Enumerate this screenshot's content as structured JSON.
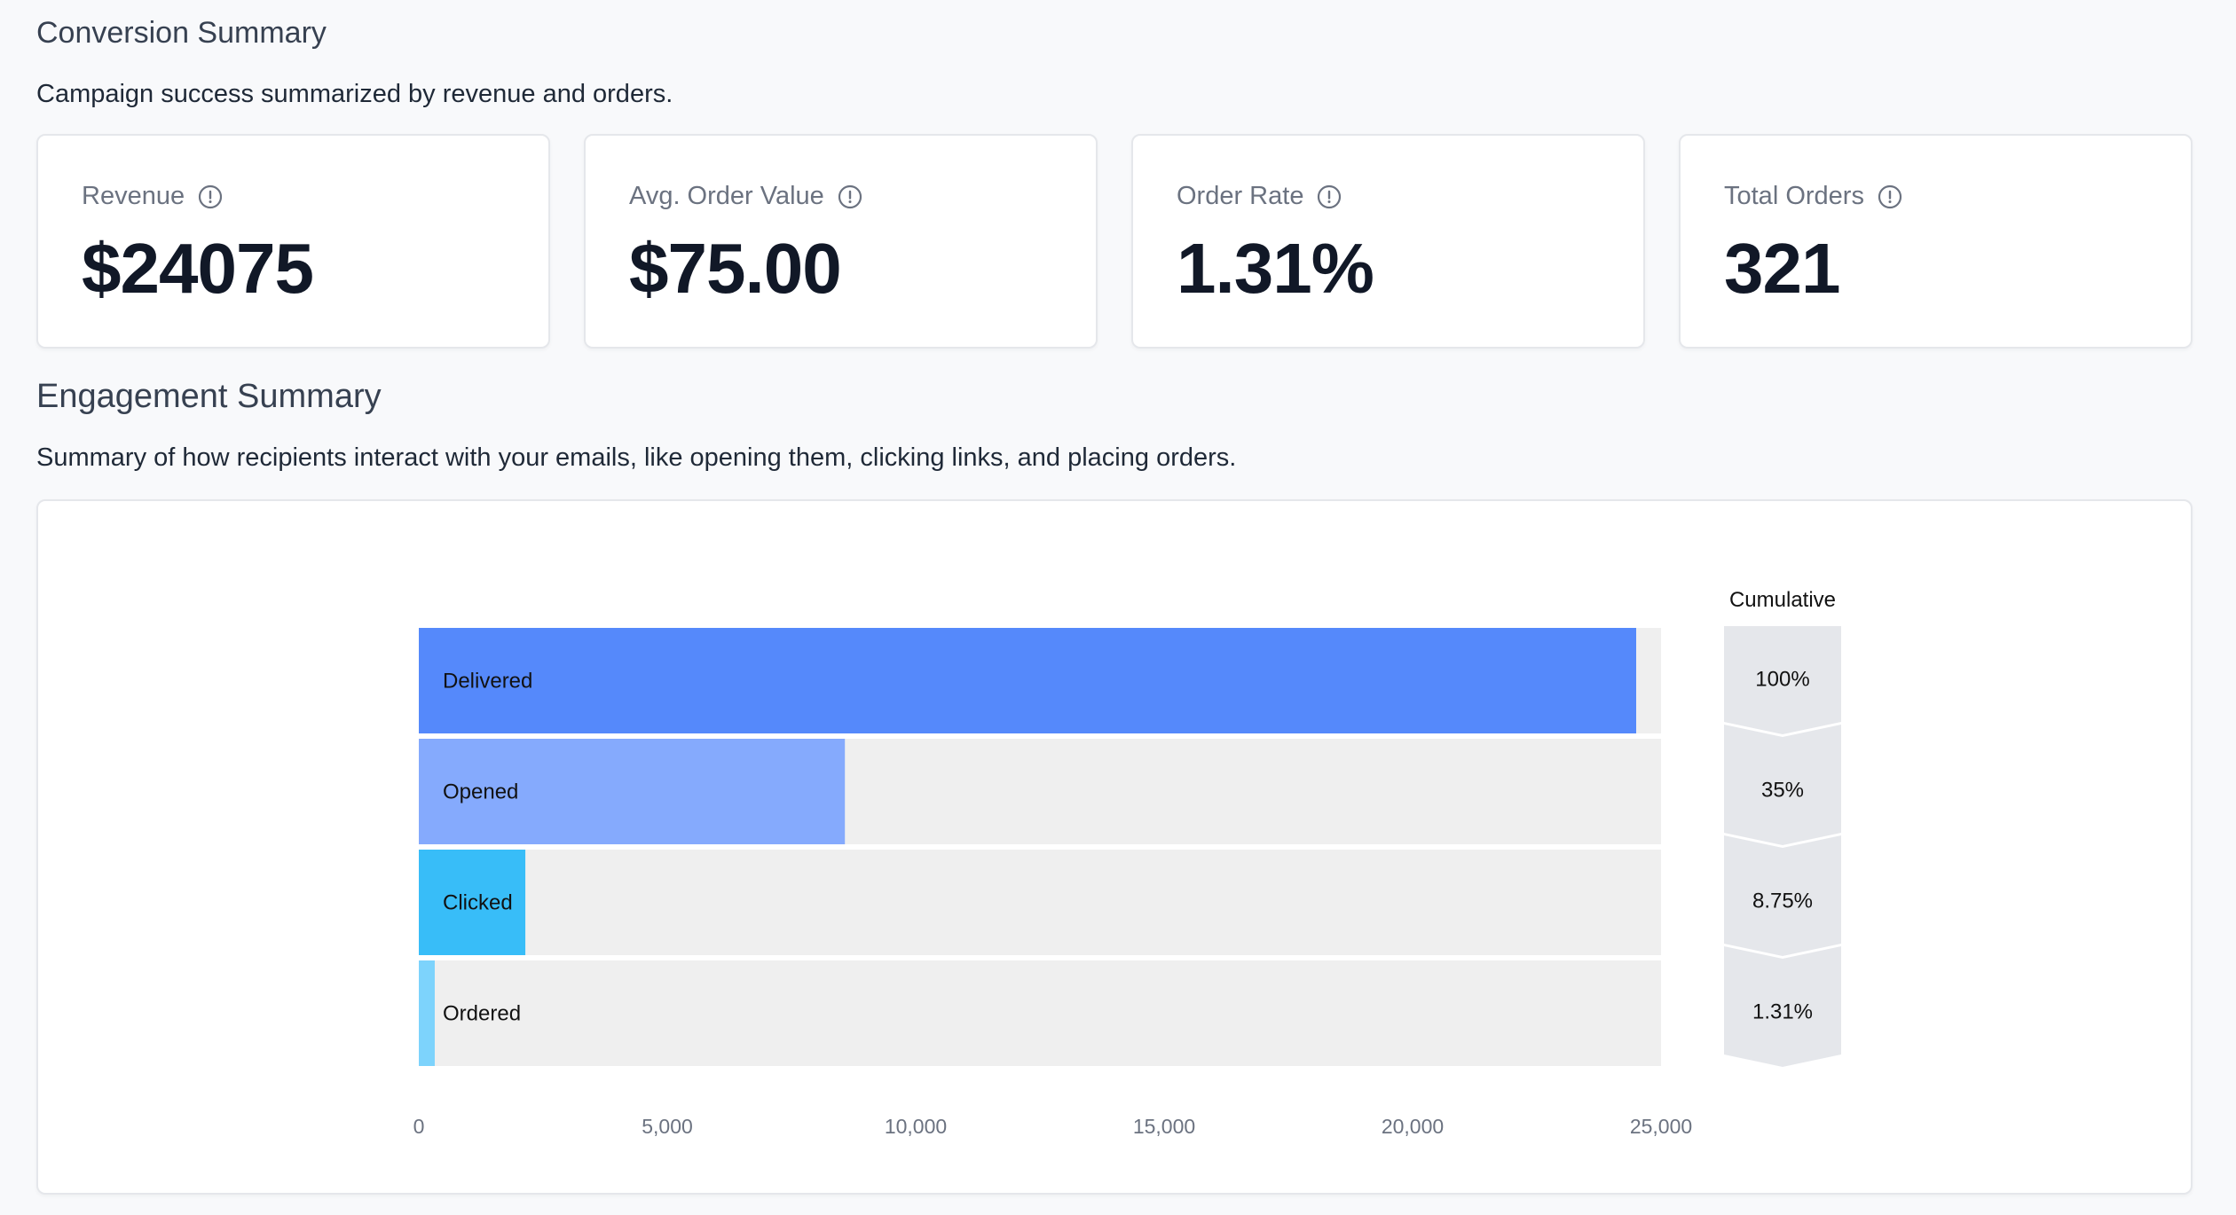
{
  "conversion": {
    "title": "Conversion Summary",
    "description": "Campaign success summarized by revenue and orders.",
    "cards": [
      {
        "label": "Revenue",
        "value": "$24075"
      },
      {
        "label": "Avg. Order Value",
        "value": "$75.00"
      },
      {
        "label": "Order Rate",
        "value": "1.31%"
      },
      {
        "label": "Total Orders",
        "value": "321"
      }
    ]
  },
  "engagement": {
    "title": "Engagement Summary",
    "description": "Summary of how recipients interact with your emails, like opening them, clicking links, and placing orders."
  },
  "chart_data": {
    "type": "bar",
    "orientation": "horizontal",
    "categories": [
      "Delivered",
      "Opened",
      "Clicked",
      "Ordered"
    ],
    "values": [
      24500,
      8575,
      2144,
      321
    ],
    "colors": [
      "#5589fb",
      "#85aafd",
      "#38bdf8",
      "#7dd3fc"
    ],
    "track_color": "#efefef",
    "xlim": [
      0,
      25000
    ],
    "xticks": [
      "0",
      "5,000",
      "10,000",
      "15,000",
      "20,000",
      "25,000"
    ],
    "xtick_values": [
      0,
      5000,
      10000,
      15000,
      20000,
      25000
    ],
    "cumulative_title": "Cumulative",
    "cumulative": [
      "100%",
      "35%",
      "8.75%",
      "1.31%"
    ],
    "grid": false,
    "legend": "none"
  }
}
